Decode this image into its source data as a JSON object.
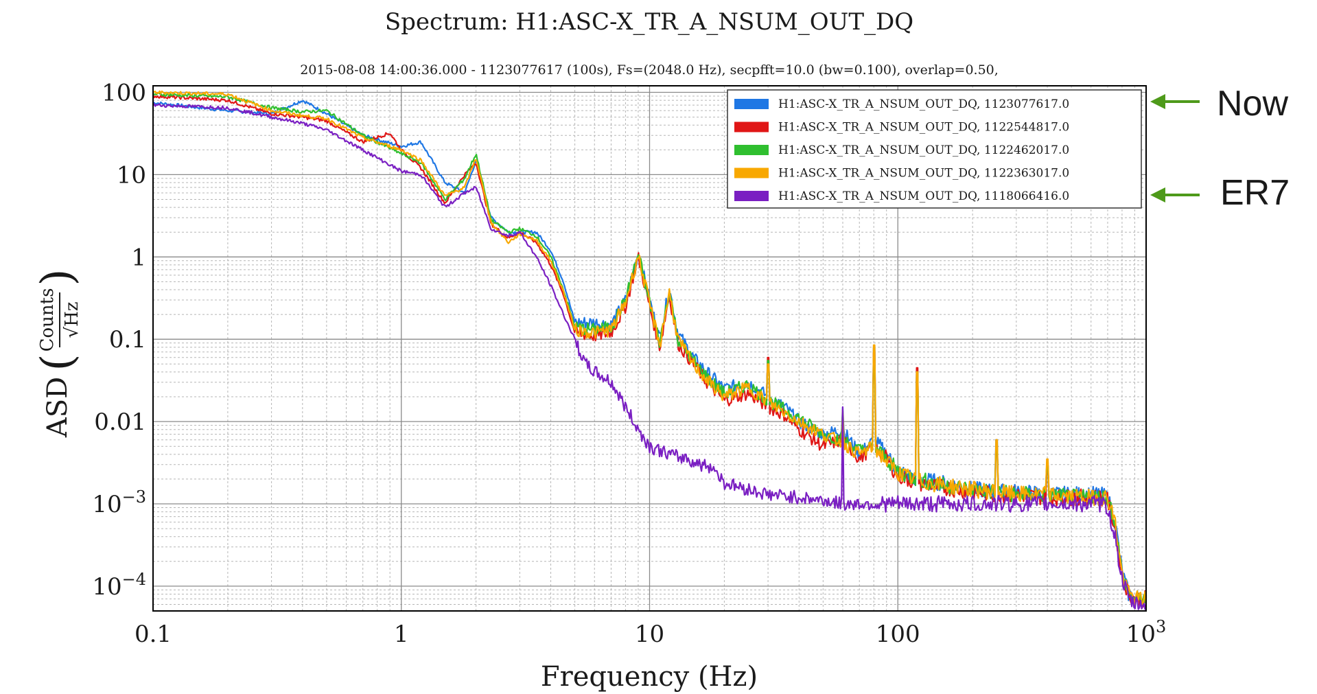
{
  "chart_data": {
    "type": "line",
    "title": "Spectrum: H1:ASC-X_TR_A_NSUM_OUT_DQ",
    "subtitle": "2015-08-08 14:00:36.000 - 1123077617 (100s), Fs=(2048.0 Hz), secpfft=10.0 (bw=0.100), overlap=0.50,",
    "xlabel": "Frequency (Hz)",
    "ylabel_prefix": "ASD",
    "ylabel_num": "Counts",
    "ylabel_den": "√Hz",
    "x_scale": "log",
    "y_scale": "log",
    "xlim": [
      0.1,
      1000
    ],
    "ylim": [
      5e-05,
      120
    ],
    "grid": true,
    "legend_position": "top-right",
    "x_ticks": [
      {
        "value": 0.1,
        "label": "0.1"
      },
      {
        "value": 1,
        "label": "1"
      },
      {
        "value": 10,
        "label": "10"
      },
      {
        "value": 100,
        "label": "100"
      },
      {
        "value": 1000,
        "label": "10",
        "sup": "3"
      }
    ],
    "y_ticks": [
      {
        "value": 100,
        "label": "100"
      },
      {
        "value": 10,
        "label": "10"
      },
      {
        "value": 1,
        "label": "1"
      },
      {
        "value": 0.1,
        "label": "0.1"
      },
      {
        "value": 0.01,
        "label": "0.01"
      },
      {
        "value": 0.001,
        "label": "10",
        "sup": "−3"
      },
      {
        "value": 0.0001,
        "label": "10",
        "sup": "−4"
      }
    ],
    "series": [
      {
        "name": "H1:ASC-X_TR_A_NSUM_OUT_DQ, 1123077617.0",
        "color": "#1f77e4",
        "x": [
          0.1,
          0.2,
          0.3,
          0.4,
          0.5,
          0.7,
          1.0,
          1.2,
          1.5,
          1.8,
          2.0,
          2.3,
          2.7,
          3.0,
          3.5,
          4.0,
          4.5,
          5.0,
          6.0,
          7.0,
          8.0,
          9.0,
          10.0,
          11.0,
          12.0,
          13.0,
          15.0,
          17.0,
          20.0,
          25.0,
          30.0,
          35.0,
          40.0,
          50.0,
          60.0,
          70.0,
          80.0,
          90.0,
          100.0,
          120.0,
          150.0,
          200.0,
          250.0,
          300.0,
          400.0,
          500.0,
          650.0,
          700.0,
          750.0,
          800.0,
          850.0,
          900.0,
          1000.0
        ],
        "y": [
          75,
          60,
          55,
          80,
          55,
          30,
          22,
          25,
          8,
          6,
          15,
          3,
          2,
          2,
          2,
          1.2,
          0.5,
          0.16,
          0.16,
          0.15,
          0.3,
          1.1,
          0.3,
          0.1,
          0.42,
          0.12,
          0.06,
          0.04,
          0.025,
          0.03,
          0.02,
          0.015,
          0.01,
          0.007,
          0.008,
          0.004,
          0.006,
          0.004,
          0.0025,
          0.002,
          0.0018,
          0.0015,
          0.0014,
          0.0014,
          0.0013,
          0.0013,
          0.0013,
          0.0012,
          0.0006,
          0.00015,
          8e-05,
          7e-05,
          7e-05
        ],
        "peaks": [
          [
            30,
            0.05
          ],
          [
            60,
            0.015
          ],
          [
            80,
            0.08
          ],
          [
            120,
            0.04
          ],
          [
            250,
            0.006
          ],
          [
            400,
            0.003
          ]
        ]
      },
      {
        "name": "H1:ASC-X_TR_A_NSUM_OUT_DQ, 1122544817.0",
        "color": "#e01616",
        "x": [
          0.1,
          0.2,
          0.3,
          0.4,
          0.5,
          0.7,
          0.9,
          1.0,
          1.2,
          1.5,
          1.8,
          2.0,
          2.3,
          2.7,
          3.0,
          3.5,
          4.0,
          4.5,
          5.0,
          6.0,
          7.0,
          8.0,
          9.0,
          10.0,
          11.0,
          12.0,
          13.0,
          15.0,
          17.0,
          20.0,
          25.0,
          30.0,
          35.0,
          40.0,
          50.0,
          60.0,
          70.0,
          80.0,
          90.0,
          100.0,
          120.0,
          150.0,
          200.0,
          250.0,
          300.0,
          400.0,
          500.0,
          650.0,
          700.0,
          750.0,
          800.0,
          850.0,
          900.0,
          1000.0
        ],
        "y": [
          90,
          80,
          55,
          50,
          45,
          25,
          32,
          20,
          12,
          4.5,
          10,
          14,
          2.5,
          1.7,
          2.0,
          1.5,
          0.8,
          0.35,
          0.12,
          0.11,
          0.12,
          0.25,
          1.0,
          0.25,
          0.08,
          0.35,
          0.09,
          0.05,
          0.03,
          0.018,
          0.022,
          0.015,
          0.012,
          0.008,
          0.005,
          0.006,
          0.0035,
          0.005,
          0.0035,
          0.0022,
          0.0018,
          0.0016,
          0.0014,
          0.0013,
          0.0013,
          0.0012,
          0.0012,
          0.0012,
          0.0011,
          0.0005,
          0.00014,
          8e-05,
          7e-05,
          7e-05
        ],
        "peaks": [
          [
            30,
            0.06
          ],
          [
            60,
            0.012
          ],
          [
            80,
            0.07
          ],
          [
            120,
            0.045
          ],
          [
            250,
            0.005
          ],
          [
            400,
            0.003
          ]
        ]
      },
      {
        "name": "H1:ASC-X_TR_A_NSUM_OUT_DQ, 1122462017.0",
        "color": "#2fbf2f",
        "x": [
          0.1,
          0.2,
          0.3,
          0.4,
          0.5,
          0.7,
          1.0,
          1.2,
          1.5,
          1.8,
          2.0,
          2.3,
          2.7,
          3.0,
          3.5,
          4.0,
          4.5,
          5.0,
          6.0,
          7.0,
          8.0,
          9.0,
          10.0,
          11.0,
          12.0,
          13.0,
          15.0,
          17.0,
          20.0,
          25.0,
          30.0,
          35.0,
          40.0,
          50.0,
          60.0,
          70.0,
          80.0,
          90.0,
          100.0,
          120.0,
          150.0,
          200.0,
          250.0,
          300.0,
          400.0,
          500.0,
          650.0,
          700.0,
          750.0,
          800.0,
          850.0,
          900.0,
          1000.0
        ],
        "y": [
          95,
          88,
          65,
          58,
          60,
          30,
          18,
          14,
          5,
          9,
          18,
          2.8,
          2.0,
          2.2,
          1.8,
          1.0,
          0.4,
          0.14,
          0.13,
          0.14,
          0.3,
          1.1,
          0.28,
          0.09,
          0.4,
          0.1,
          0.055,
          0.035,
          0.022,
          0.028,
          0.018,
          0.014,
          0.011,
          0.007,
          0.006,
          0.0045,
          0.005,
          0.0035,
          0.0025,
          0.002,
          0.0017,
          0.0015,
          0.0014,
          0.0013,
          0.0013,
          0.0012,
          0.0012,
          0.0012,
          0.0006,
          0.00014,
          8e-05,
          7e-05,
          7e-05
        ],
        "peaks": [
          [
            30,
            0.055
          ],
          [
            60,
            0.013
          ],
          [
            80,
            0.06
          ],
          [
            120,
            0.04
          ],
          [
            250,
            0.005
          ],
          [
            400,
            0.003
          ]
        ]
      },
      {
        "name": "H1:ASC-X_TR_A_NSUM_OUT_DQ, 1122363017.0",
        "color": "#f8a800",
        "x": [
          0.1,
          0.2,
          0.3,
          0.4,
          0.5,
          0.7,
          1.0,
          1.2,
          1.5,
          1.8,
          2.0,
          2.3,
          2.7,
          3.0,
          3.5,
          4.0,
          4.5,
          5.0,
          6.0,
          7.0,
          8.0,
          9.0,
          10.0,
          11.0,
          12.0,
          13.0,
          15.0,
          17.0,
          20.0,
          25.0,
          30.0,
          35.0,
          40.0,
          50.0,
          60.0,
          70.0,
          80.0,
          90.0,
          100.0,
          120.0,
          150.0,
          200.0,
          250.0,
          300.0,
          400.0,
          500.0,
          650.0,
          700.0,
          750.0,
          800.0,
          850.0,
          900.0,
          1000.0
        ],
        "y": [
          100,
          95,
          60,
          52,
          48,
          28,
          20,
          15,
          5.5,
          7,
          16,
          2.6,
          1.5,
          1.9,
          1.6,
          0.9,
          0.38,
          0.13,
          0.12,
          0.13,
          0.28,
          1.05,
          0.27,
          0.085,
          0.38,
          0.1,
          0.05,
          0.032,
          0.02,
          0.026,
          0.017,
          0.013,
          0.01,
          0.007,
          0.0055,
          0.004,
          0.005,
          0.0033,
          0.0024,
          0.0019,
          0.0017,
          0.0015,
          0.0014,
          0.0013,
          0.0013,
          0.0012,
          0.0012,
          0.0012,
          0.0006,
          0.00014,
          8e-05,
          7e-05,
          7e-05
        ],
        "peaks": [
          [
            30,
            0.05
          ],
          [
            60,
            0.014
          ],
          [
            80,
            0.085
          ],
          [
            120,
            0.04
          ],
          [
            250,
            0.006
          ],
          [
            400,
            0.0035
          ]
        ]
      },
      {
        "name": "H1:ASC-X_TR_A_NSUM_OUT_DQ, 1118066416.0",
        "color": "#7a1fc2",
        "x": [
          0.1,
          0.2,
          0.3,
          0.4,
          0.5,
          0.7,
          1.0,
          1.2,
          1.5,
          1.8,
          2.0,
          2.3,
          2.7,
          3.0,
          3.5,
          4.0,
          4.5,
          5.0,
          5.5,
          6.0,
          7.0,
          8.0,
          9.0,
          10.0,
          12.0,
          14.0,
          16.0,
          18.0,
          20.0,
          25.0,
          30.0,
          40.0,
          50.0,
          60.0,
          70.0,
          80.0,
          100.0,
          150.0,
          200.0,
          300.0,
          500.0,
          650.0,
          700.0,
          750.0,
          800.0,
          850.0,
          900.0,
          1000.0
        ],
        "y": [
          70,
          65,
          50,
          42,
          35,
          20,
          11,
          10,
          4,
          6,
          7,
          2.2,
          1.8,
          2.0,
          1.0,
          0.45,
          0.2,
          0.1,
          0.05,
          0.04,
          0.03,
          0.015,
          0.008,
          0.005,
          0.004,
          0.0035,
          0.003,
          0.0028,
          0.0018,
          0.0015,
          0.0013,
          0.0012,
          0.0011,
          0.001,
          0.001,
          0.001,
          0.001,
          0.001,
          0.001,
          0.001,
          0.001,
          0.001,
          0.0009,
          0.0004,
          0.00012,
          7e-05,
          6e-05,
          6e-05
        ],
        "peaks": [
          [
            60,
            0.015
          ],
          [
            14,
            0.004
          ]
        ]
      }
    ]
  },
  "annotations": [
    {
      "text": "Now",
      "color": "#4e9a1a"
    },
    {
      "text": "ER7",
      "color": "#4e9a1a"
    }
  ]
}
